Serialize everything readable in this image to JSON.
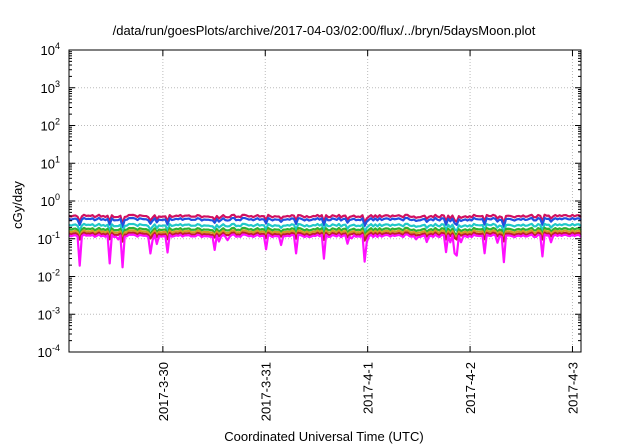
{
  "chart_data": {
    "type": "line",
    "title": "/data/run/goesPlots/archive/2017-04-03/02:00/flux/../bryn/5daysMoon.plot",
    "xlabel": "Coordinated Universal Time (UTC)",
    "ylabel": "cGy/day",
    "yscale": "log",
    "ylim": [
      0.0001,
      10000
    ],
    "yticks": [
      {
        "value": 0.0001,
        "base": "10",
        "exp": "-4"
      },
      {
        "value": 0.001,
        "base": "10",
        "exp": "-3"
      },
      {
        "value": 0.01,
        "base": "10",
        "exp": "-2"
      },
      {
        "value": 0.1,
        "base": "10",
        "exp": "-1"
      },
      {
        "value": 1,
        "base": "10",
        "exp": "0"
      },
      {
        "value": 10,
        "base": "10",
        "exp": "1"
      },
      {
        "value": 100,
        "base": "10",
        "exp": "2"
      },
      {
        "value": 1000,
        "base": "10",
        "exp": "3"
      },
      {
        "value": 10000,
        "base": "10",
        "exp": "4"
      }
    ],
    "xlim": [
      "2017-03-29 02:00",
      "2017-04-03 02:00"
    ],
    "xticks": [
      "2017-3-30",
      "2017-3-31",
      "2017-4-1",
      "2017-4-2",
      "2017-4-3"
    ],
    "grid": true,
    "series": [
      {
        "color": "#d01060",
        "base": 0.4
      },
      {
        "color": "#2050e0",
        "base": 0.33
      },
      {
        "color": "#20c8c8",
        "base": 0.23
      },
      {
        "color": "#30b030",
        "base": 0.18
      },
      {
        "color": "#d0a020",
        "base": 0.155
      },
      {
        "color": "#c02030",
        "base": 0.135
      },
      {
        "color": "#ff10ff",
        "base": 0.12
      }
    ]
  }
}
